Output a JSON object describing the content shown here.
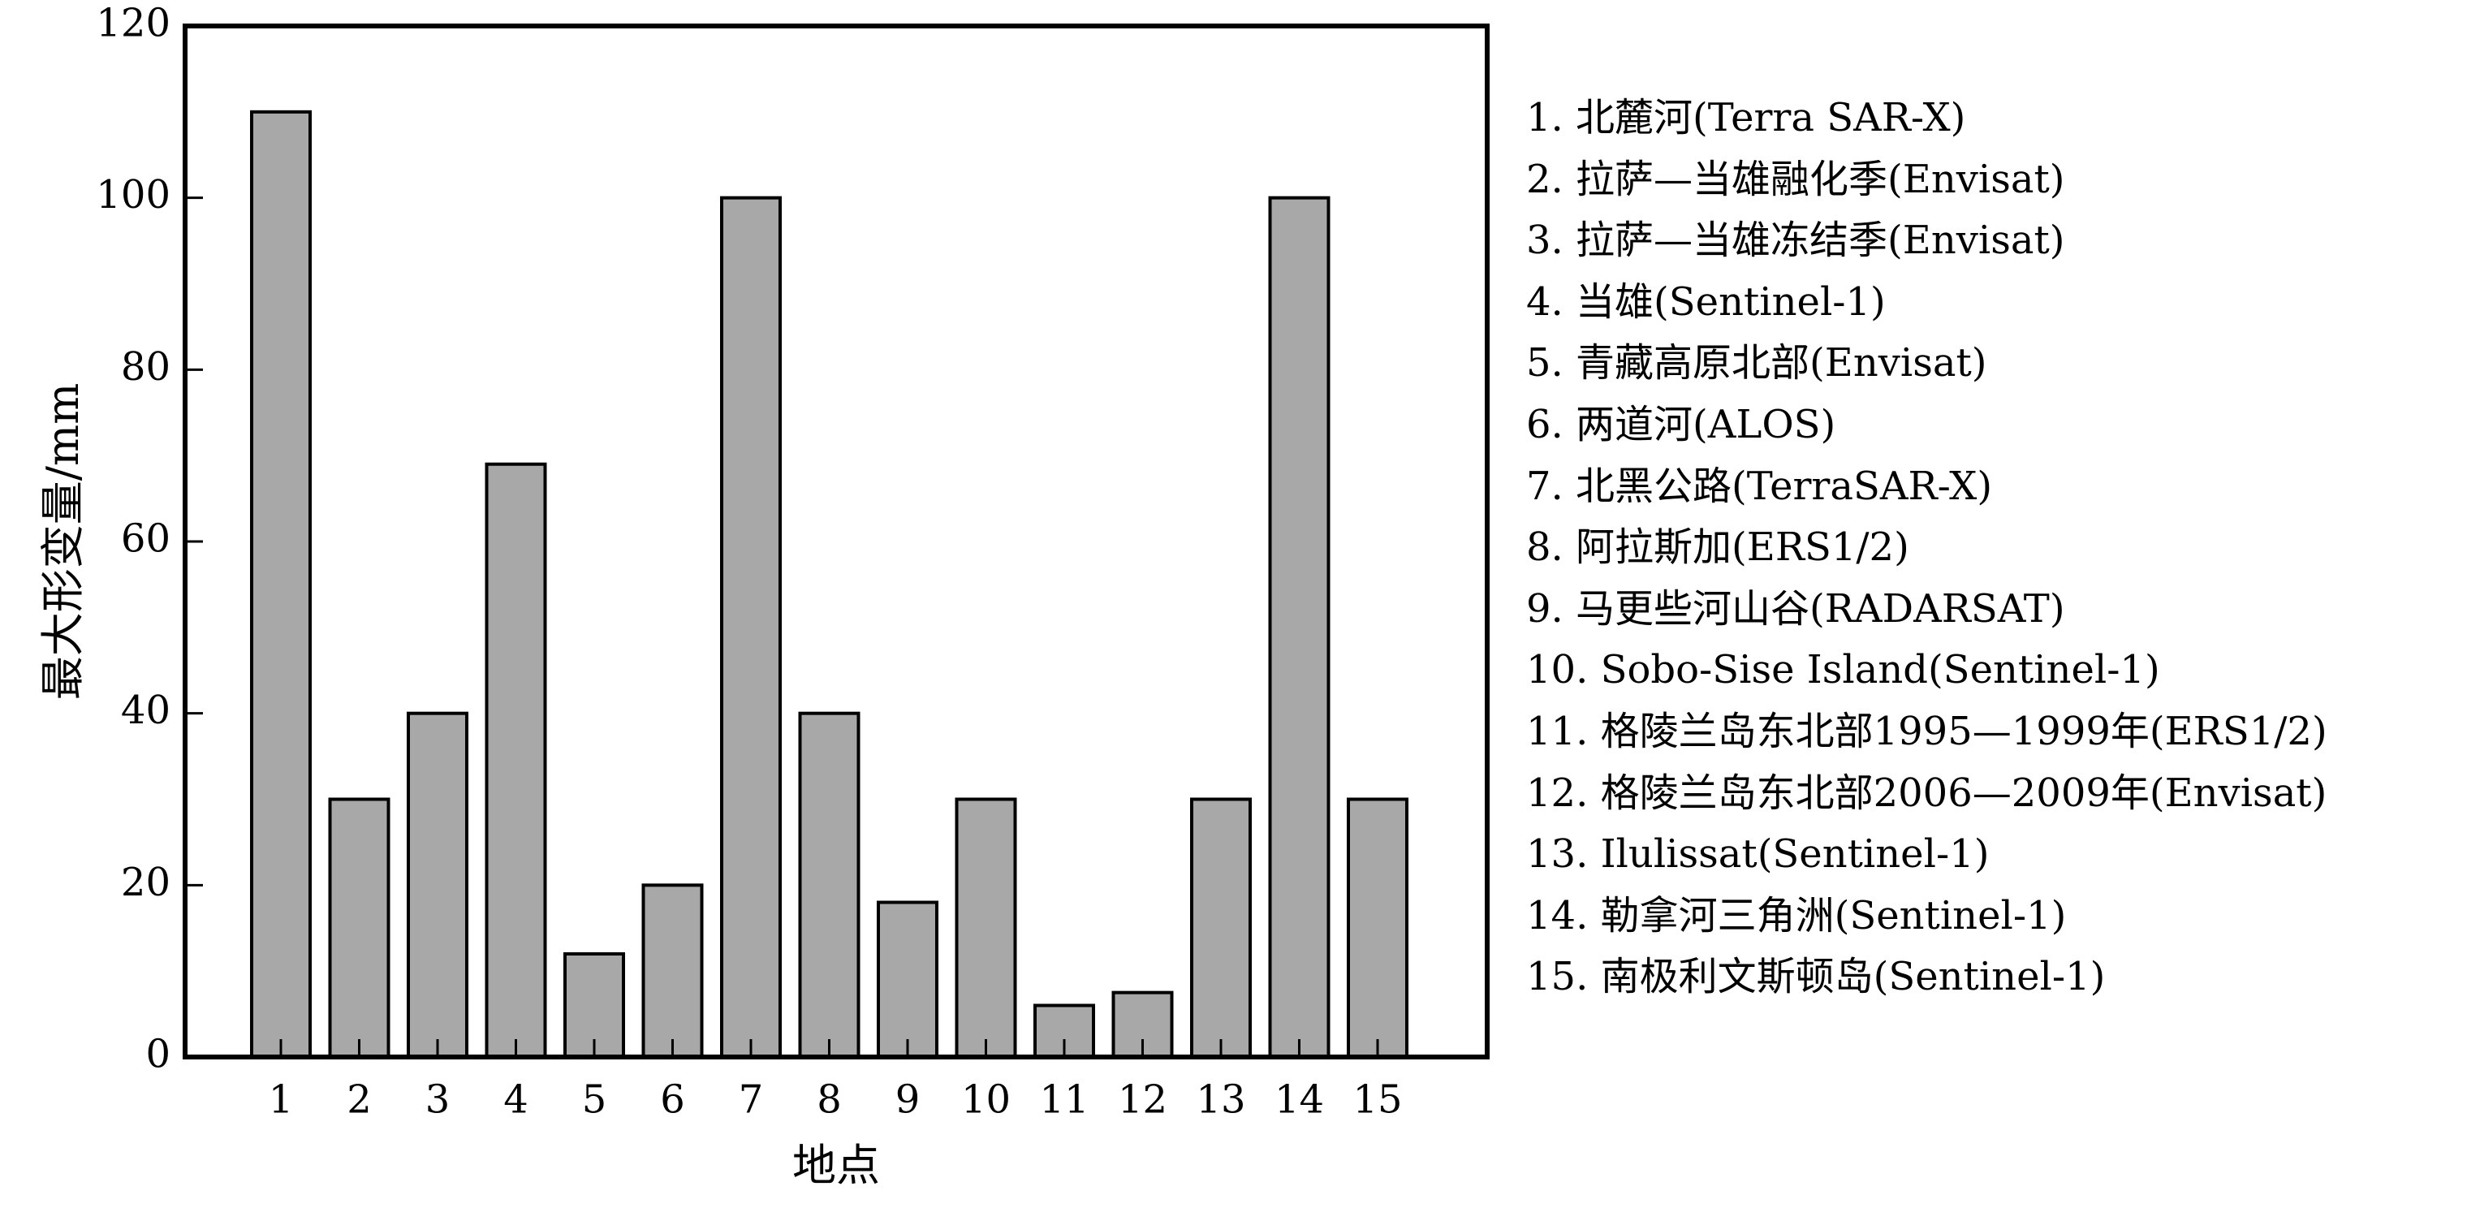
{
  "chart_data": {
    "type": "bar",
    "categories": [
      "1",
      "2",
      "3",
      "4",
      "5",
      "6",
      "7",
      "8",
      "9",
      "10",
      "11",
      "12",
      "13",
      "14",
      "15"
    ],
    "values": [
      110,
      30,
      40,
      69,
      12,
      20,
      100,
      40,
      18,
      30,
      6,
      7.5,
      30,
      100,
      30
    ],
    "xlabel": "地点",
    "ylabel": "最大形变量/mm",
    "ylim": [
      0,
      120
    ],
    "yticks": [
      0,
      20,
      40,
      60,
      80,
      100,
      120
    ],
    "grid": false,
    "legend_position": "right",
    "bar_color": "#a8a8a8",
    "edge_color": "#000000",
    "legend_entries": [
      "1. 北麓河(Terra SAR-X)",
      "2. 拉萨—当雄融化季(Envisat)",
      "3. 拉萨—当雄冻结季(Envisat)",
      "4. 当雄(Sentinel-1)",
      "5. 青藏高原北部(Envisat)",
      "6. 两道河(ALOS)",
      "7. 北黑公路(TerraSAR-X)",
      "8. 阿拉斯加(ERS1/2)",
      "9. 马更些河山谷(RADARSAT)",
      "10. Sobo-Sise Island(Sentinel-1)",
      "11. 格陵兰岛东北部1995—1999年(ERS1/2)",
      "12. 格陵兰岛东北部2006—2009年(Envisat)",
      "13. Ilulissat(Sentinel-1)",
      "14. 勒拿河三角洲(Sentinel-1)",
      "15. 南极利文斯顿岛(Sentinel-1)"
    ]
  }
}
